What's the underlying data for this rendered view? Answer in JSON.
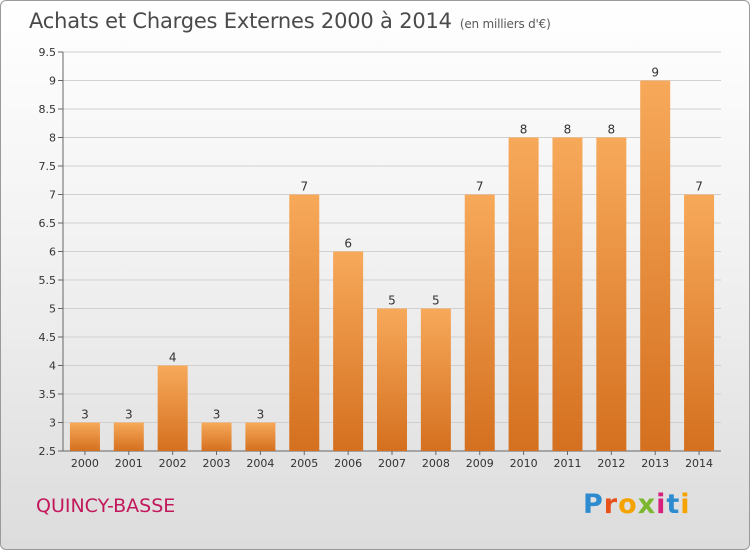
{
  "header": {
    "title": "Achats et Charges Externes 2000 à 2014",
    "subtitle": "(en milliers d'€)"
  },
  "footer": {
    "town": "QUINCY-BASSE",
    "logo_letters": [
      "P",
      "r",
      "o",
      "x",
      "i",
      "t",
      "i"
    ],
    "logo_colors": [
      "#2e8bd0",
      "#e8501c",
      "#f5a300",
      "#7cb82f",
      "#d6207d",
      "#2e8bd0",
      "#f5a300"
    ]
  },
  "chart_data": {
    "type": "bar",
    "title": "Achats et Charges Externes 2000 à 2014",
    "subtitle": "(en milliers d'€)",
    "categories": [
      "2000",
      "2001",
      "2002",
      "2003",
      "2004",
      "2005",
      "2006",
      "2007",
      "2008",
      "2009",
      "2010",
      "2011",
      "2012",
      "2013",
      "2014"
    ],
    "values": [
      3,
      3,
      4,
      3,
      3,
      7,
      6,
      5,
      5,
      7,
      8,
      8,
      8,
      9,
      7
    ],
    "data_labels": [
      "3",
      "3",
      "4",
      "3",
      "3",
      "7",
      "6",
      "5",
      "5",
      "7",
      "8",
      "8",
      "8",
      "9",
      "7"
    ],
    "ylim": [
      2.5,
      9.5
    ],
    "yticks": [
      "2.5",
      "3",
      "3.5",
      "4",
      "4.5",
      "5",
      "5.5",
      "6",
      "6.5",
      "7",
      "7.5",
      "8",
      "8.5",
      "9",
      "9.5"
    ],
    "grid": true,
    "bar_color_top": "#f7a95a",
    "bar_color_bottom": "#d4701f"
  }
}
